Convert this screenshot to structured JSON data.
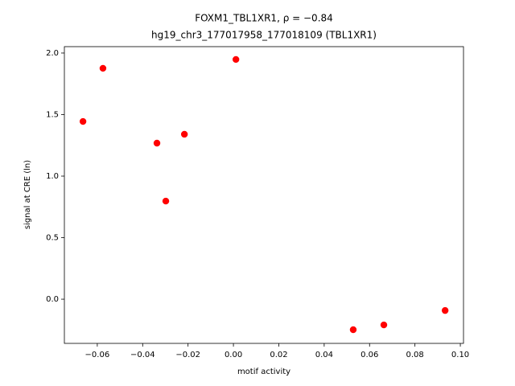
{
  "chart_data": {
    "type": "scatter",
    "title": "FOXM1_TBL1XR1, ρ = −0.84",
    "subtitle": "hg19_chr3_177017958_177018109 (TBL1XR1)",
    "x_label": "motif activity",
    "y_label": "signal at CRE (ln)",
    "color": "#ff0000",
    "x": [
      -0.0663,
      -0.0575,
      -0.0337,
      -0.0298,
      -0.0216,
      0.0011,
      0.0528,
      0.0663,
      0.0933
    ],
    "values": [
      1.444,
      1.876,
      1.268,
      0.797,
      1.34,
      1.948,
      -0.248,
      -0.209,
      -0.092
    ],
    "xlim": [
      -0.0745,
      0.1014
    ],
    "ylim": [
      -0.359,
      2.052
    ],
    "xticks": [
      {
        "value": -0.06,
        "label": "−0.06"
      },
      {
        "value": -0.04,
        "label": "−0.04"
      },
      {
        "value": -0.02,
        "label": "−0.02"
      },
      {
        "value": 0,
        "label": "0.00"
      },
      0.02,
      0.04,
      0.06,
      0.08,
      {
        "value": 0.1,
        "label": "0.10"
      }
    ],
    "yticks": [
      {
        "value": 0,
        "label": "0.0"
      },
      0.5,
      {
        "value": 1,
        "label": "1.0"
      },
      1.5,
      {
        "value": 2,
        "label": "2.0"
      }
    ]
  }
}
